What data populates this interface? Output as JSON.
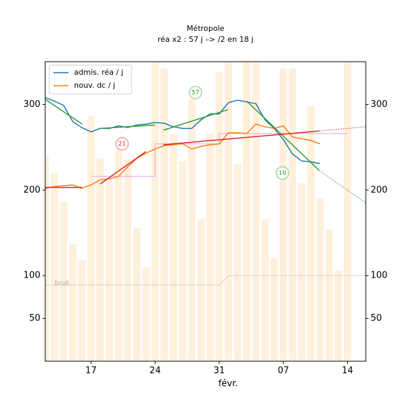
{
  "chart_data": {
    "type": "line",
    "title": "Métropole",
    "subtitle": "réa x2 : 57 j –> /2 en 18 j",
    "xlabel": "févr.",
    "xlim": [
      12,
      47
    ],
    "xticks": [
      17,
      24,
      31,
      {
        "value": 38,
        "label": "07"
      },
      {
        "value": 45,
        "label": "14"
      }
    ],
    "ylim": [
      0,
      350
    ],
    "yticks": [
      50,
      100,
      200,
      300
    ],
    "legend": "upper left",
    "series": [
      {
        "name": "admis. réa / j",
        "color": "#1f77b4",
        "x": [
          12,
          13,
          14,
          15,
          16,
          17,
          18,
          19,
          20,
          21,
          22,
          23,
          24,
          25,
          26,
          27,
          28,
          29,
          30,
          31,
          32,
          33,
          34,
          35,
          36,
          37,
          38,
          39,
          40,
          41,
          42
        ],
        "values": [
          308,
          304,
          299,
          280,
          273,
          268,
          272,
          272,
          275,
          273,
          276,
          277,
          279,
          278,
          274,
          272,
          272,
          282,
          289,
          289,
          302,
          305,
          303,
          301,
          282,
          272,
          259,
          242,
          234,
          233,
          231
        ]
      },
      {
        "name": "nouv. dc / j",
        "color": "#ff7f0e",
        "x": [
          12,
          13,
          14,
          15,
          16,
          17,
          18,
          19,
          20,
          21,
          22,
          23,
          24,
          25,
          26,
          27,
          28,
          29,
          30,
          31,
          32,
          33,
          34,
          35,
          36,
          37,
          38,
          39,
          40,
          41,
          42
        ],
        "values": [
          202,
          204,
          205,
          206,
          202,
          206,
          212,
          213,
          216,
          227,
          237,
          243,
          248,
          252,
          253,
          254,
          248,
          251,
          253,
          254,
          267,
          267,
          266,
          277,
          274,
          272,
          275,
          262,
          260,
          258,
          254
        ]
      }
    ],
    "bars": {
      "color": "#fff0dc",
      "x": [
        12,
        13,
        14,
        15,
        16,
        17,
        18,
        19,
        20,
        21,
        22,
        23,
        24,
        25,
        26,
        27,
        28,
        29,
        30,
        31,
        32,
        33,
        34,
        35,
        36,
        37,
        38,
        39,
        40,
        41,
        42,
        43,
        44,
        45
      ],
      "values": [
        240,
        220,
        186,
        137,
        118,
        286,
        237,
        210,
        248,
        236,
        156,
        110,
        360,
        342,
        266,
        234,
        306,
        166,
        266,
        338,
        360,
        230,
        360,
        349,
        166,
        120,
        342,
        342,
        208,
        298,
        190,
        154,
        106,
        360
      ]
    },
    "trends": [
      {
        "color": "#2ca02c",
        "style": "solid",
        "x": [
          12,
          16.04
        ],
        "y": [
          306,
          277
        ]
      },
      {
        "color": "#2ca02c",
        "style": "solid",
        "x": [
          18.0,
          24.0
        ],
        "y": [
          272,
          276
        ]
      },
      {
        "color": "#2ca02c",
        "style": "solid",
        "x": [
          24.9,
          31.97
        ],
        "y": [
          270,
          294
        ]
      },
      {
        "color": "#2ca02c",
        "style": "solid",
        "x": [
          34.0,
          41.9
        ],
        "y": [
          304,
          223
        ]
      },
      {
        "color": "#2ca02c",
        "style": "dotted",
        "x": [
          41.9,
          47
        ],
        "y": [
          223,
          185
        ]
      },
      {
        "color": "#d62728",
        "style": "solid",
        "x": [
          12,
          16.04
        ],
        "y": [
          203,
          203
        ]
      },
      {
        "color": "#d62728",
        "style": "solid",
        "x": [
          18.0,
          23.0
        ],
        "y": [
          207,
          245
        ]
      },
      {
        "color": "#d62728",
        "style": "solid",
        "x": [
          24.9,
          41.9
        ],
        "y": [
          253,
          269
        ]
      },
      {
        "color": "#d62728",
        "style": "dotted",
        "x": [
          41.9,
          47
        ],
        "y": [
          269,
          274
        ]
      }
    ],
    "steps": {
      "color": "#e8a0e0",
      "x": [
        17,
        24,
        24,
        31,
        31,
        45
      ],
      "y": [
        216,
        216,
        254,
        254,
        266,
        266
      ]
    },
    "noise": {
      "label": "bruit",
      "color": "#aaaaaa",
      "x": [
        12,
        31,
        32,
        47
      ],
      "y": [
        89,
        89,
        100,
        100
      ]
    },
    "annotations": [
      {
        "text": "57",
        "color": "#2ca02c",
        "x": 28.4,
        "y": 314
      },
      {
        "text": "21",
        "color": "#d62728",
        "x": 20.4,
        "y": 254
      },
      {
        "text": "18",
        "color": "#2ca02c",
        "x": 37.9,
        "y": 220
      }
    ]
  }
}
